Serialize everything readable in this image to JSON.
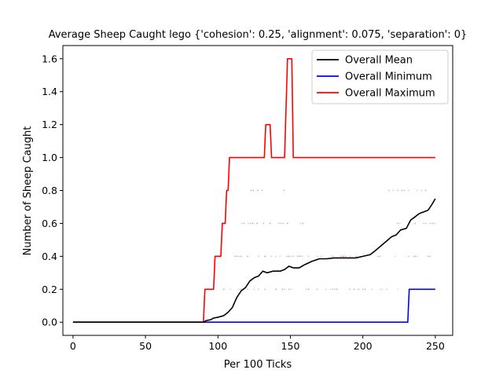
{
  "chart_data": {
    "type": "line",
    "title": "Average Sheep Caught lego {'cohesion': 0.25, 'alignment': 0.075, 'separation': 0}",
    "xlabel": "Per 100 Ticks",
    "ylabel": "Number of Sheep Caught",
    "xlim": [
      -7,
      262
    ],
    "ylim": [
      -0.08,
      1.68
    ],
    "xticks": [
      0,
      50,
      100,
      150,
      200,
      250
    ],
    "yticks": [
      0.0,
      0.2,
      0.4,
      0.6,
      0.8,
      1.0,
      1.2,
      1.4,
      1.6
    ],
    "xtick_labels": [
      "0",
      "50",
      "100",
      "150",
      "200",
      "250"
    ],
    "ytick_labels": [
      "0.0",
      "0.2",
      "0.4",
      "0.6",
      "0.8",
      "1.0",
      "1.2",
      "1.4",
      "1.6"
    ],
    "legend_position": "top-right",
    "series": [
      {
        "name": "Overall Mean",
        "color": "#000000",
        "points": [
          [
            0,
            0
          ],
          [
            90,
            0
          ],
          [
            92,
            0.01
          ],
          [
            95,
            0.015
          ],
          [
            97,
            0.025
          ],
          [
            100,
            0.03
          ],
          [
            104,
            0.04
          ],
          [
            107,
            0.06
          ],
          [
            110,
            0.09
          ],
          [
            113,
            0.15
          ],
          [
            116,
            0.19
          ],
          [
            119,
            0.21
          ],
          [
            122,
            0.25
          ],
          [
            125,
            0.27
          ],
          [
            128,
            0.28
          ],
          [
            131,
            0.31
          ],
          [
            134,
            0.3
          ],
          [
            138,
            0.31
          ],
          [
            143,
            0.31
          ],
          [
            146,
            0.32
          ],
          [
            149,
            0.34
          ],
          [
            152,
            0.33
          ],
          [
            156,
            0.33
          ],
          [
            160,
            0.35
          ],
          [
            165,
            0.37
          ],
          [
            170,
            0.385
          ],
          [
            175,
            0.385
          ],
          [
            180,
            0.39
          ],
          [
            185,
            0.39
          ],
          [
            190,
            0.39
          ],
          [
            195,
            0.39
          ],
          [
            200,
            0.4
          ],
          [
            205,
            0.41
          ],
          [
            208,
            0.43
          ],
          [
            212,
            0.46
          ],
          [
            216,
            0.49
          ],
          [
            220,
            0.52
          ],
          [
            223,
            0.53
          ],
          [
            226,
            0.56
          ],
          [
            230,
            0.57
          ],
          [
            233,
            0.62
          ],
          [
            236,
            0.64
          ],
          [
            239,
            0.66
          ],
          [
            242,
            0.67
          ],
          [
            245,
            0.68
          ],
          [
            248,
            0.72
          ],
          [
            250,
            0.75
          ]
        ]
      },
      {
        "name": "Overall Minimum",
        "color": "#0000ff",
        "points": [
          [
            0,
            0
          ],
          [
            231,
            0
          ],
          [
            232,
            0.2
          ],
          [
            250,
            0.2
          ]
        ]
      },
      {
        "name": "Overall Maximum",
        "color": "#ff0000",
        "points": [
          [
            0,
            0
          ],
          [
            90,
            0
          ],
          [
            91,
            0.2
          ],
          [
            97,
            0.2
          ],
          [
            98,
            0.4
          ],
          [
            102,
            0.4
          ],
          [
            103,
            0.6
          ],
          [
            105,
            0.6
          ],
          [
            106,
            0.8
          ],
          [
            107,
            0.8
          ],
          [
            108,
            1.0
          ],
          [
            132,
            1.0
          ],
          [
            133,
            1.2
          ],
          [
            136,
            1.2
          ],
          [
            137,
            1.0
          ],
          [
            146,
            1.0
          ],
          [
            148,
            1.6
          ],
          [
            151,
            1.6
          ],
          [
            152,
            1.0
          ],
          [
            250,
            1.0
          ]
        ]
      }
    ],
    "scatter_bands": [
      {
        "y": 0.2,
        "x_ranges": [
          [
            95,
            250
          ]
        ]
      },
      {
        "y": 0.4,
        "x_ranges": [
          [
            110,
            250
          ]
        ]
      },
      {
        "y": 0.6,
        "x_ranges": [
          [
            115,
            160
          ],
          [
            215,
            250
          ]
        ]
      },
      {
        "y": 0.8,
        "x_ranges": [
          [
            120,
            150
          ],
          [
            160,
            170
          ],
          [
            218,
            250
          ]
        ]
      }
    ],
    "scatter_colors": [
      "#1f77b4",
      "#ff7f0e",
      "#2ca02c",
      "#d62728",
      "#9467bd",
      "#8c564b",
      "#e377c2",
      "#7f7f7f",
      "#bcbd22",
      "#17becf"
    ]
  }
}
